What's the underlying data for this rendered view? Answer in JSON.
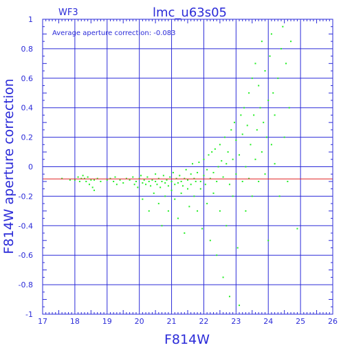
{
  "chart_data": {
    "type": "scatter",
    "title": "lmc_u63s05",
    "subtitle": "WF3",
    "xlabel": "F814W",
    "ylabel": "F814W aperture correction",
    "annotation": "Average aperture correction: -0.083",
    "xlim": [
      17,
      26
    ],
    "ylim": [
      -1,
      1
    ],
    "xticks": [
      "17",
      "18",
      "19",
      "20",
      "21",
      "22",
      "23",
      "24",
      "25",
      "26"
    ],
    "yticks": [
      "-1",
      "-0.8",
      "-0.6",
      "-0.4",
      "-0.2",
      "0",
      "0.2",
      "0.4",
      "0.6",
      "0.8",
      "1"
    ],
    "grid": true,
    "reference_line": {
      "y": -0.083,
      "color": "#e02020"
    },
    "colors": {
      "axes": "#2a2ad8",
      "points": "#22ee22",
      "reference": "#e02020"
    },
    "series": [
      {
        "points": [
          [
            17.6,
            -0.08
          ],
          [
            17.85,
            -0.09
          ],
          [
            18.0,
            -0.09
          ],
          [
            18.1,
            -0.07
          ],
          [
            18.15,
            -0.1
          ],
          [
            18.2,
            -0.08
          ],
          [
            18.25,
            -0.06
          ],
          [
            18.3,
            -0.08
          ],
          [
            18.35,
            -0.1
          ],
          [
            18.4,
            -0.07
          ],
          [
            18.45,
            -0.12
          ],
          [
            18.5,
            -0.09
          ],
          [
            18.55,
            -0.14
          ],
          [
            18.6,
            -0.09
          ],
          [
            18.6,
            -0.16
          ],
          [
            18.7,
            -0.08
          ],
          [
            18.8,
            -0.1
          ],
          [
            19.0,
            -0.09
          ],
          [
            19.1,
            -0.08
          ],
          [
            19.2,
            -0.1
          ],
          [
            19.25,
            -0.07
          ],
          [
            19.3,
            -0.12
          ],
          [
            19.4,
            -0.09
          ],
          [
            19.5,
            -0.11
          ],
          [
            19.6,
            -0.08
          ],
          [
            19.7,
            -0.09
          ],
          [
            19.8,
            -0.07
          ],
          [
            19.85,
            -0.12
          ],
          [
            19.9,
            -0.1
          ],
          [
            19.95,
            -0.14
          ],
          [
            20.0,
            -0.08
          ],
          [
            20.05,
            -0.06
          ],
          [
            20.1,
            -0.11
          ],
          [
            20.1,
            -0.22
          ],
          [
            20.15,
            -0.09
          ],
          [
            20.2,
            -0.12
          ],
          [
            20.25,
            -0.07
          ],
          [
            20.3,
            -0.1
          ],
          [
            20.3,
            -0.3
          ],
          [
            20.35,
            -0.13
          ],
          [
            20.4,
            -0.09
          ],
          [
            20.45,
            -0.18
          ],
          [
            20.5,
            -0.1
          ],
          [
            20.5,
            -0.05
          ],
          [
            20.55,
            -0.12
          ],
          [
            20.6,
            -0.08
          ],
          [
            20.6,
            -0.25
          ],
          [
            20.65,
            -0.14
          ],
          [
            20.7,
            -0.1
          ],
          [
            20.7,
            -0.4
          ],
          [
            20.75,
            -0.06
          ],
          [
            20.8,
            -0.11
          ],
          [
            20.8,
            -0.2
          ],
          [
            20.85,
            -0.09
          ],
          [
            20.9,
            -0.13
          ],
          [
            20.9,
            -0.3
          ],
          [
            20.95,
            -0.07
          ],
          [
            21.0,
            -0.1
          ],
          [
            21.0,
            -0.16
          ],
          [
            21.05,
            -0.04
          ],
          [
            21.1,
            -0.12
          ],
          [
            21.1,
            -0.22
          ],
          [
            21.15,
            -0.08
          ],
          [
            21.2,
            -0.11
          ],
          [
            21.2,
            -0.35
          ],
          [
            21.25,
            -0.06
          ],
          [
            21.3,
            -0.1
          ],
          [
            21.3,
            -0.18
          ],
          [
            21.35,
            -0.13
          ],
          [
            21.4,
            -0.08
          ],
          [
            21.4,
            -0.45
          ],
          [
            21.45,
            -0.02
          ],
          [
            21.5,
            -0.09
          ],
          [
            21.5,
            -0.15
          ],
          [
            21.55,
            -0.27
          ],
          [
            21.6,
            -0.05
          ],
          [
            21.6,
            -0.12
          ],
          [
            21.65,
            0.02
          ],
          [
            21.7,
            -0.08
          ],
          [
            21.7,
            -0.2
          ],
          [
            21.75,
            -0.1
          ],
          [
            21.8,
            -0.3
          ],
          [
            21.8,
            -0.04
          ],
          [
            21.85,
            0.03
          ],
          [
            21.9,
            -0.1
          ],
          [
            21.9,
            -0.15
          ],
          [
            21.95,
            -0.42
          ],
          [
            22.0,
            -0.06
          ],
          [
            22.0,
            0.05
          ],
          [
            22.05,
            -0.12
          ],
          [
            22.1,
            -0.02
          ],
          [
            22.1,
            -0.25
          ],
          [
            22.15,
            0.08
          ],
          [
            22.2,
            -0.08
          ],
          [
            22.2,
            -0.5
          ],
          [
            22.25,
            0.1
          ],
          [
            22.3,
            -0.04
          ],
          [
            22.3,
            -0.18
          ],
          [
            22.35,
            0.12
          ],
          [
            22.4,
            -0.1
          ],
          [
            22.4,
            -0.6
          ],
          [
            22.45,
            0.0
          ],
          [
            22.5,
            0.15
          ],
          [
            22.5,
            -0.3
          ],
          [
            22.55,
            0.04
          ],
          [
            22.6,
            -0.07
          ],
          [
            22.6,
            -0.75
          ],
          [
            22.65,
            0.2
          ],
          [
            22.7,
            0.02
          ],
          [
            22.7,
            -0.4
          ],
          [
            22.75,
            0.1
          ],
          [
            22.8,
            -0.12
          ],
          [
            22.8,
            -0.88
          ],
          [
            22.85,
            0.25
          ],
          [
            22.9,
            0.05
          ],
          [
            22.9,
            -0.2
          ],
          [
            22.95,
            0.3
          ],
          [
            23.0,
            -0.05
          ],
          [
            23.0,
            0.18
          ],
          [
            23.05,
            -0.55
          ],
          [
            23.1,
            0.08
          ],
          [
            23.1,
            -0.94
          ],
          [
            23.15,
            0.35
          ],
          [
            23.2,
            -0.1
          ],
          [
            23.2,
            0.22
          ],
          [
            23.25,
            0.4
          ],
          [
            23.3,
            0.0
          ],
          [
            23.3,
            -0.3
          ],
          [
            23.35,
            0.28
          ],
          [
            23.4,
            0.5
          ],
          [
            23.4,
            -0.08
          ],
          [
            23.45,
            0.15
          ],
          [
            23.5,
            0.6
          ],
          [
            23.5,
            -0.2
          ],
          [
            23.55,
            0.35
          ],
          [
            23.6,
            0.05
          ],
          [
            23.6,
            0.7
          ],
          [
            23.65,
            0.25
          ],
          [
            23.7,
            -0.1
          ],
          [
            23.7,
            0.55
          ],
          [
            23.75,
            0.4
          ],
          [
            23.8,
            0.1
          ],
          [
            23.8,
            0.85
          ],
          [
            23.85,
            0.3
          ],
          [
            23.9,
            -0.05
          ],
          [
            23.9,
            0.65
          ],
          [
            23.95,
            0.2
          ],
          [
            24.0,
            0.45
          ],
          [
            24.0,
            -0.5
          ],
          [
            24.05,
            0.75
          ],
          [
            24.1,
            0.15
          ],
          [
            24.1,
            0.9
          ],
          [
            24.15,
            0.5
          ],
          [
            24.2,
            0.02
          ],
          [
            24.2,
            0.35
          ],
          [
            24.3,
            0.6
          ],
          [
            24.35,
            -0.2
          ],
          [
            24.4,
            0.8
          ],
          [
            24.45,
            0.95
          ],
          [
            24.5,
            0.2
          ],
          [
            24.55,
            0.7
          ],
          [
            24.6,
            -0.1
          ],
          [
            24.65,
            0.4
          ],
          [
            24.7,
            0.85
          ],
          [
            24.9,
            -0.42
          ]
        ]
      }
    ]
  }
}
